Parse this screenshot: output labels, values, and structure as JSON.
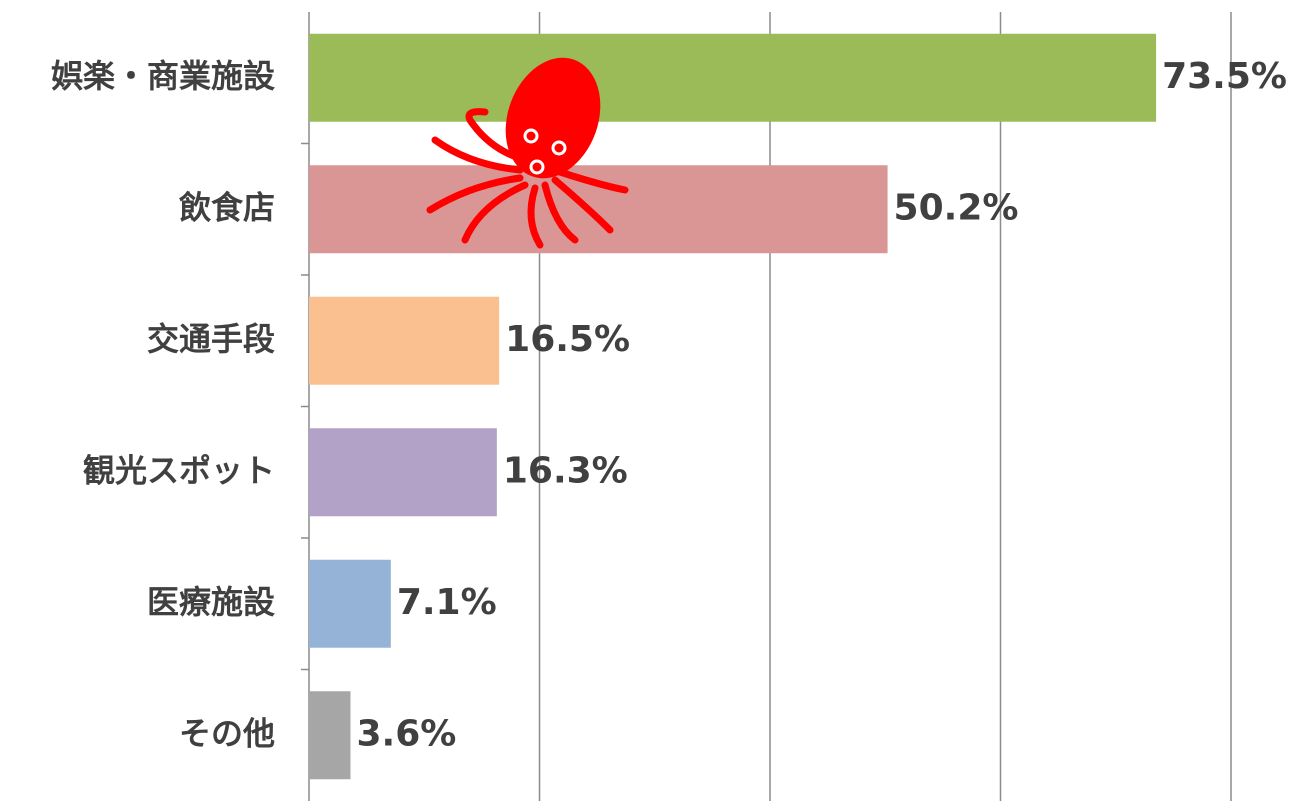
{
  "chart_data": {
    "type": "barh",
    "categories": [
      "娯楽・商業施設",
      "飲食店",
      "交通手段",
      "観光スポット",
      "医療施設",
      "その他"
    ],
    "values": [
      73.5,
      50.2,
      16.5,
      16.3,
      7.1,
      3.6
    ],
    "value_labels": [
      "73.5%",
      "50.2%",
      "16.5%",
      "16.3%",
      "7.1%",
      "3.6%"
    ],
    "colors": [
      "#9bbb59",
      "#d99694",
      "#fac090",
      "#b3a2c7",
      "#95b3d7",
      "#a6a6a6"
    ],
    "xlim": [
      0,
      80
    ],
    "xticks": [
      0,
      20,
      40,
      60,
      80
    ],
    "grid": true
  }
}
